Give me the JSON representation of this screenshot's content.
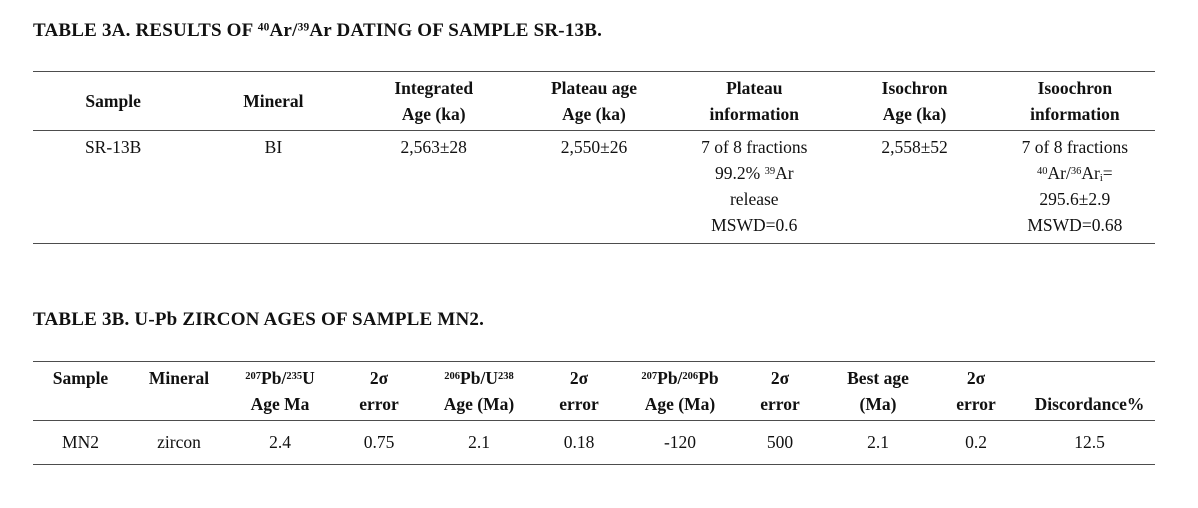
{
  "page": {
    "background_color": "#ffffff",
    "text_color": "#111111",
    "rule_color": "#4d4d4d"
  },
  "table_a": {
    "title_parts": {
      "t1": "TABLE 3A. RESULTS OF ",
      "sup1": "40",
      "t2": "Ar/",
      "sup2": "39",
      "t3": "Ar DATING OF SAMPLE SR-13B."
    },
    "headers": {
      "sample": "Sample",
      "mineral": "Mineral",
      "integrated_line1": "Integrated",
      "integrated_line2": "Age (ka)",
      "plateau_age_line1": "Plateau age",
      "plateau_age_line2": "Age (ka)",
      "plateau_info_line1": "Plateau",
      "plateau_info_line2": "information",
      "isochron_line1": "Isochron",
      "isochron_line2": "Age (ka)",
      "isoochron_line1": "Isoochron",
      "isoochron_line2": "information"
    },
    "row": {
      "sample": "SR-13B",
      "mineral": "BI",
      "integrated_age": "2,563±28",
      "plateau_age": "2,550±26",
      "plateau_info_line1": "7 of 8 fractions",
      "plateau_info_line2_t1": "99.2% ",
      "plateau_info_line2_sup": "39",
      "plateau_info_line2_t2": "Ar",
      "plateau_info_line3": "release",
      "plateau_info_line4": "MSWD=0.6",
      "isochron_age": "2,558±52",
      "isoochron_line1": "7 of 8 fractions",
      "isoochron_line2_sup1": "40",
      "isoochron_line2_t1": "Ar/",
      "isoochron_line2_sup2": "36",
      "isoochron_line2_t2": "Ar",
      "isoochron_line2_sub": "i",
      "isoochron_line2_t3": "=",
      "isoochron_line3": "295.6±2.9",
      "isoochron_line4": "MSWD=0.68"
    }
  },
  "table_b": {
    "title": "TABLE 3B. U-Pb ZIRCON AGES OF SAMPLE MN2.",
    "headers": {
      "sample": "Sample",
      "mineral": "Mineral",
      "pb207_u235_sup1": "207",
      "pb207_u235_t1": "Pb/",
      "pb207_u235_sup2": "235",
      "pb207_u235_t2": "U",
      "pb207_u235_line2": "Age Ma",
      "sigma1_line1": "2σ",
      "sigma1_line2": "error",
      "pb206_u238_sup1": "206",
      "pb206_u238_t1": "Pb/U",
      "pb206_u238_sup2": "238",
      "pb206_u238_line2": "Age (Ma)",
      "sigma2_line1": "2σ",
      "sigma2_line2": "error",
      "pb207_pb206_sup1": "207",
      "pb207_pb206_t1": "Pb/",
      "pb207_pb206_sup2": "206",
      "pb207_pb206_t2": "Pb",
      "pb207_pb206_line2": "Age (Ma)",
      "sigma3_line1": "2σ",
      "sigma3_line2": "error",
      "best_age_line1": "Best age",
      "best_age_line2": "(Ma)",
      "sigma4_line1": "2σ",
      "sigma4_line2": "error",
      "discordance": "Discordance%"
    },
    "row": {
      "sample": "MN2",
      "mineral": "zircon",
      "pb207_u235_age": "2.4",
      "error1": "0.75",
      "pb206_u238_age": "2.1",
      "error2": "0.18",
      "pb207_pb206_age": "-120",
      "error3": "500",
      "best_age": "2.1",
      "error4": "0.2",
      "discordance": "12.5"
    }
  }
}
